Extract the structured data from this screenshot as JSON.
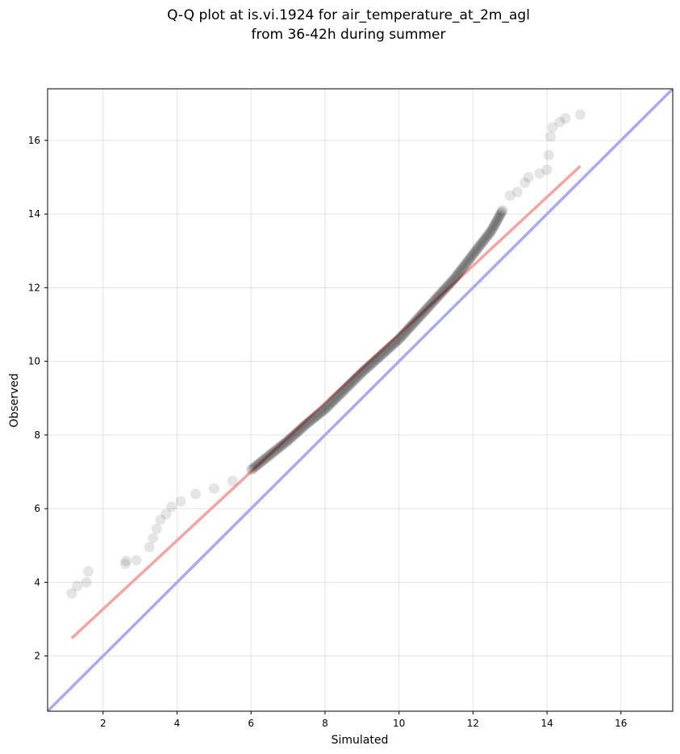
{
  "chart_data": {
    "type": "scatter",
    "title_lines": [
      "Q-Q plot at is.vi.1924 for air_temperature_at_2m_agl",
      "from 36-42h during summer"
    ],
    "xlabel": "Simulated",
    "ylabel": "Observed",
    "xlim": [
      0.5,
      17.4
    ],
    "ylim": [
      0.5,
      17.4
    ],
    "xticks": [
      2,
      4,
      6,
      8,
      10,
      12,
      14,
      16
    ],
    "yticks": [
      2,
      4,
      6,
      8,
      10,
      12,
      14,
      16
    ],
    "grid": true,
    "legend": "none",
    "reference_line": {
      "from": [
        0.5,
        0.5
      ],
      "to": [
        17.4,
        17.4
      ],
      "color": "#aaaaee"
    },
    "fit_line": {
      "from": [
        1.15,
        2.48
      ],
      "to": [
        14.9,
        15.3
      ],
      "color": "#f4a4a4"
    },
    "point_color": "#000000",
    "quantile_curve": [
      [
        1.15,
        3.7
      ],
      [
        1.3,
        3.9
      ],
      [
        1.55,
        4.0
      ],
      [
        1.6,
        4.3
      ],
      [
        2.6,
        4.5
      ],
      [
        2.62,
        4.58
      ],
      [
        2.9,
        4.6
      ],
      [
        3.25,
        4.95
      ],
      [
        3.35,
        5.2
      ],
      [
        3.45,
        5.45
      ],
      [
        3.55,
        5.7
      ],
      [
        3.7,
        5.85
      ],
      [
        3.85,
        6.05
      ],
      [
        4.1,
        6.2
      ],
      [
        4.5,
        6.4
      ],
      [
        5.0,
        6.55
      ],
      [
        5.5,
        6.75
      ],
      [
        6.0,
        7.05
      ],
      [
        6.5,
        7.45
      ],
      [
        7.0,
        7.85
      ],
      [
        7.5,
        8.3
      ],
      [
        8.0,
        8.7
      ],
      [
        8.5,
        9.2
      ],
      [
        9.0,
        9.7
      ],
      [
        9.5,
        10.15
      ],
      [
        10.0,
        10.6
      ],
      [
        10.5,
        11.15
      ],
      [
        11.0,
        11.7
      ],
      [
        11.5,
        12.25
      ],
      [
        12.0,
        12.9
      ],
      [
        12.5,
        13.55
      ],
      [
        12.8,
        14.1
      ],
      [
        13.0,
        14.5
      ],
      [
        13.2,
        14.6
      ],
      [
        13.4,
        14.85
      ],
      [
        13.5,
        15.0
      ],
      [
        13.8,
        15.1
      ],
      [
        14.0,
        15.2
      ],
      [
        14.05,
        15.6
      ],
      [
        14.1,
        16.1
      ],
      [
        14.15,
        16.35
      ],
      [
        14.35,
        16.5
      ],
      [
        14.5,
        16.6
      ],
      [
        14.9,
        16.7
      ]
    ]
  }
}
